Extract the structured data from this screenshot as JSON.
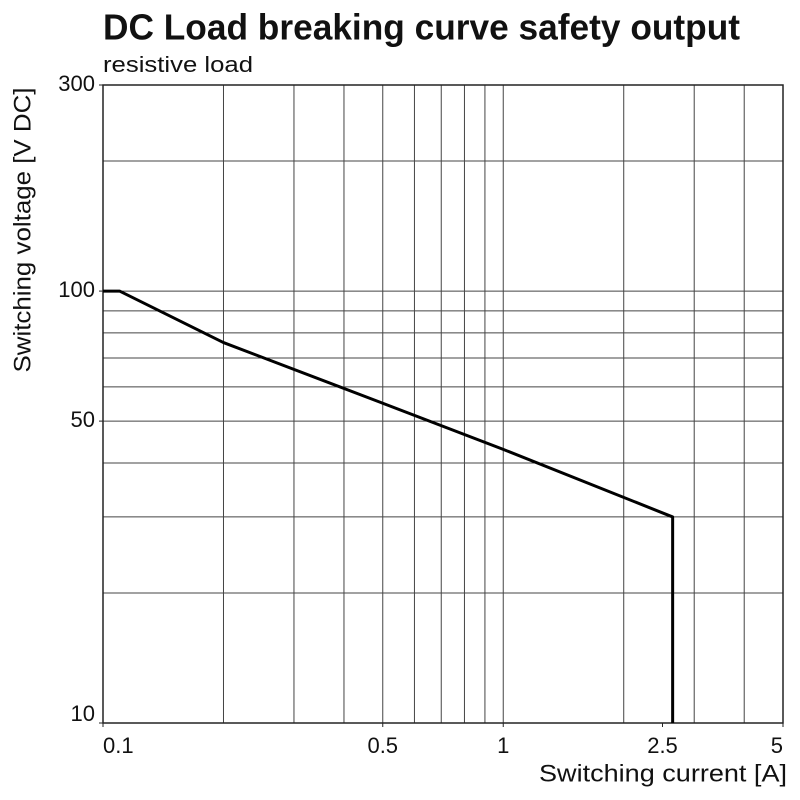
{
  "chart_data": {
    "type": "line",
    "title": "DC Load breaking curve safety output",
    "subtitle": "resistive load",
    "x_label": "Switching current [A]",
    "y_label": "Switching voltage [V DC]",
    "xscale": "log",
    "yscale": "log",
    "xlim": [
      0.1,
      5
    ],
    "ylim": [
      10,
      300
    ],
    "xticks": [
      0.1,
      0.5,
      1,
      2.5,
      5
    ],
    "yticks": [
      10,
      50,
      100,
      300
    ],
    "x_gridlines": [
      0.2,
      0.3,
      0.4,
      0.5,
      0.6,
      0.7,
      0.8,
      0.9,
      1,
      2,
      3,
      4
    ],
    "y_gridlines": [
      20,
      30,
      40,
      50,
      60,
      70,
      80,
      90,
      100,
      200
    ],
    "grid": true,
    "x": [
      0.1,
      0.11,
      0.2,
      0.5,
      1,
      2.65,
      2.65
    ],
    "series": [
      {
        "color": "#000000",
        "values": [
          100,
          100,
          76,
          55,
          43,
          30,
          10
        ]
      }
    ]
  }
}
